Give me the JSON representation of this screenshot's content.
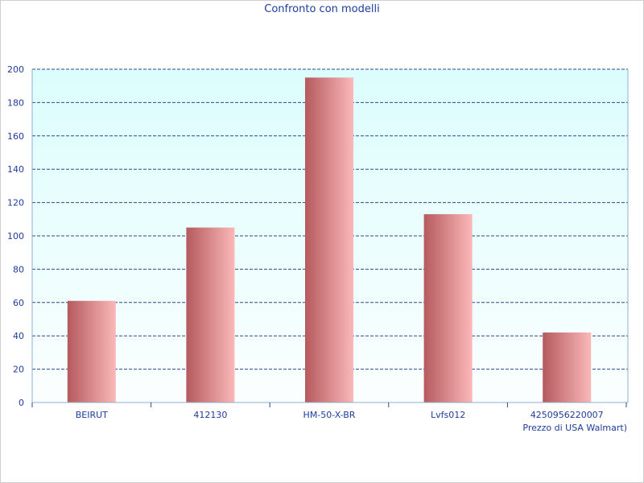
{
  "chart_data": {
    "type": "bar",
    "title": "Confronto con modelli",
    "xlabel": "Prezzo di USA Walmart)",
    "ylabel": "",
    "categories": [
      "BEIRUT",
      "412130",
      "HM-50-X-BR",
      "Lvfs012",
      "4250956220007"
    ],
    "values": [
      61,
      105,
      195,
      113,
      42
    ],
    "ylim": [
      0,
      200
    ],
    "yticks": [
      0,
      20,
      40,
      60,
      80,
      100,
      120,
      140,
      160,
      180,
      200
    ],
    "grid": true,
    "legend": "none",
    "colors": {
      "bar_dark": "#b55a5e",
      "bar_light": "#fbb8b8",
      "plot_bg_top": "#dcfdfd",
      "plot_bg_bottom": "#fbfefe",
      "grid": "#2a4b8a",
      "axis": "#8fb0d0",
      "text": "#1e3c9a"
    }
  }
}
